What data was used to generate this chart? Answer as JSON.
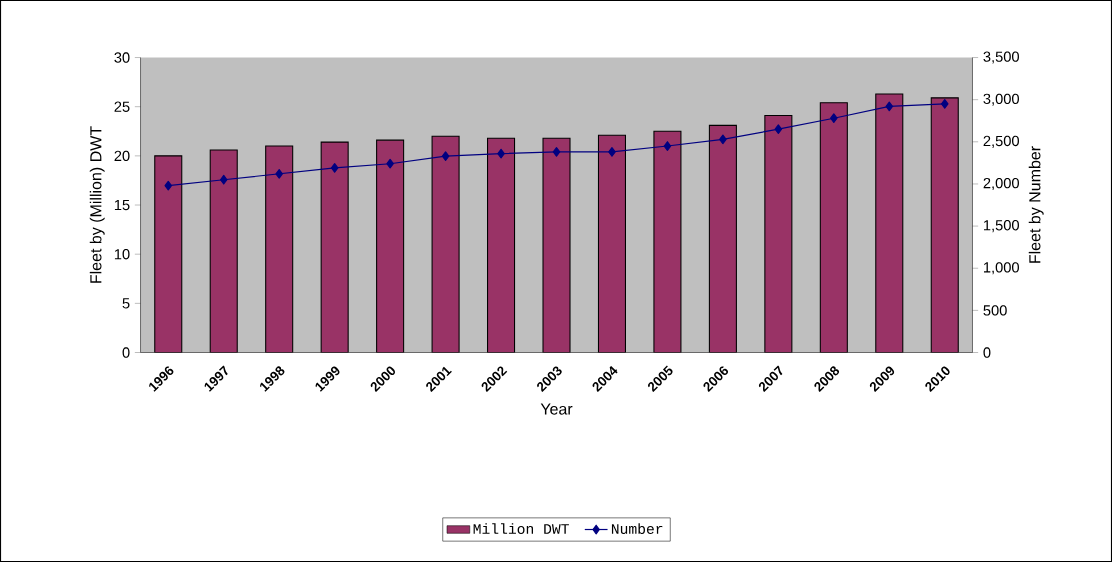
{
  "chart_data": {
    "type": "bar",
    "xlabel": "Year",
    "ylabel": "Fleet by (Million) DWT",
    "y2label": "Fleet by Number",
    "categories": [
      "1996",
      "1997",
      "1998",
      "1999",
      "2000",
      "2001",
      "2002",
      "2003",
      "2004",
      "2005",
      "2006",
      "2007",
      "2008",
      "2009",
      "2010"
    ],
    "series": [
      {
        "name": "Million DWT",
        "color": "#993366",
        "values": [
          20.0,
          20.6,
          21.0,
          21.4,
          21.6,
          22.0,
          21.8,
          21.8,
          22.1,
          22.5,
          23.1,
          24.1,
          25.4,
          26.3,
          25.9
        ]
      },
      {
        "name": "Number",
        "type": "line",
        "axis": "y2",
        "color": "#000080",
        "values": [
          1980,
          2050,
          2120,
          2190,
          2240,
          2330,
          2360,
          2380,
          2380,
          2450,
          2530,
          2650,
          2780,
          2920,
          2950
        ]
      }
    ],
    "ylim": [
      0,
      30
    ],
    "yticks": [
      0,
      5,
      10,
      15,
      20,
      25,
      30
    ],
    "y2lim": [
      0,
      3500
    ],
    "y2ticks": [
      0,
      500,
      {
        "value": 1000,
        "label": "1,000"
      },
      {
        "value": 1500,
        "label": "1,500"
      },
      {
        "value": 2000,
        "label": "2,000"
      },
      {
        "value": 2500,
        "label": "2,500"
      },
      {
        "value": 3000,
        "label": "3,000"
      },
      {
        "value": 3500,
        "label": "3,500"
      }
    ],
    "marker": "diamond",
    "legend": "bottom"
  }
}
